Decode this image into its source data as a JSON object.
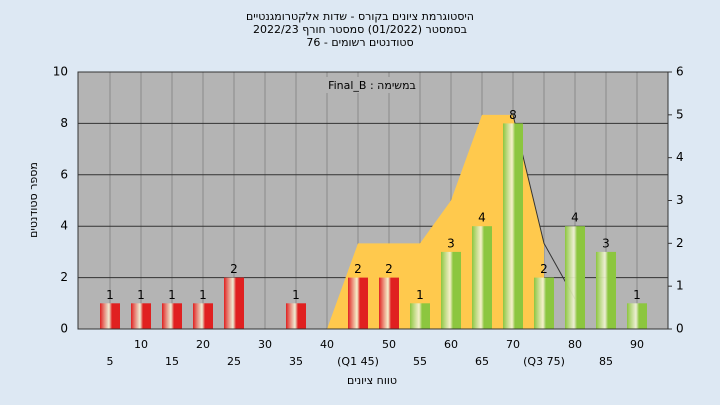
{
  "chart_data": {
    "type": "bar",
    "title": [
      "היסטוגרמת ציונים בקורס - שדות אלקטרומגנטיים",
      "בסמסטר  (01/2022)  סמסטר חורף 2022/23",
      "סטודנטים רשומים - 76"
    ],
    "annotation": "Final_B : במשימה",
    "xlabel": "טווח ציונים",
    "ylabel": "מספר סטודנטים",
    "categories": [
      "5",
      "10",
      "15",
      "20",
      "25",
      "30",
      "35",
      "40",
      "(Q1 45)",
      "50",
      "55",
      "60",
      "65",
      "70",
      "(Q3 75)",
      "80",
      "85",
      "90"
    ],
    "series": [
      {
        "color": "#e02020",
        "values": [
          1,
          1,
          1,
          1,
          2,
          0,
          1,
          0,
          2,
          2,
          null,
          null,
          null,
          null,
          null,
          null,
          null,
          null
        ]
      },
      {
        "color": "#8cc63f",
        "values": [
          null,
          null,
          null,
          null,
          null,
          null,
          null,
          null,
          null,
          null,
          1,
          3,
          4,
          8,
          2,
          4,
          3,
          1
        ]
      },
      {
        "type": "area",
        "axis": "y2",
        "color": "#ffc94d",
        "values": [
          null,
          null,
          null,
          null,
          null,
          null,
          null,
          0,
          2,
          2,
          2,
          3,
          5,
          5,
          2,
          null,
          null,
          null
        ]
      },
      {
        "type": "line",
        "axis": "y2",
        "color": "#333333",
        "values": [
          null,
          null,
          null,
          null,
          null,
          null,
          null,
          null,
          null,
          null,
          null,
          null,
          null,
          5,
          2,
          0.7,
          null,
          null
        ]
      }
    ],
    "ylim": [
      0,
      10
    ],
    "yticks": [
      0,
      2,
      4,
      6,
      8,
      10
    ],
    "y2lim": [
      0,
      6
    ],
    "y2ticks": [
      0,
      1,
      2,
      3,
      4,
      5,
      6
    ],
    "grid": true
  }
}
